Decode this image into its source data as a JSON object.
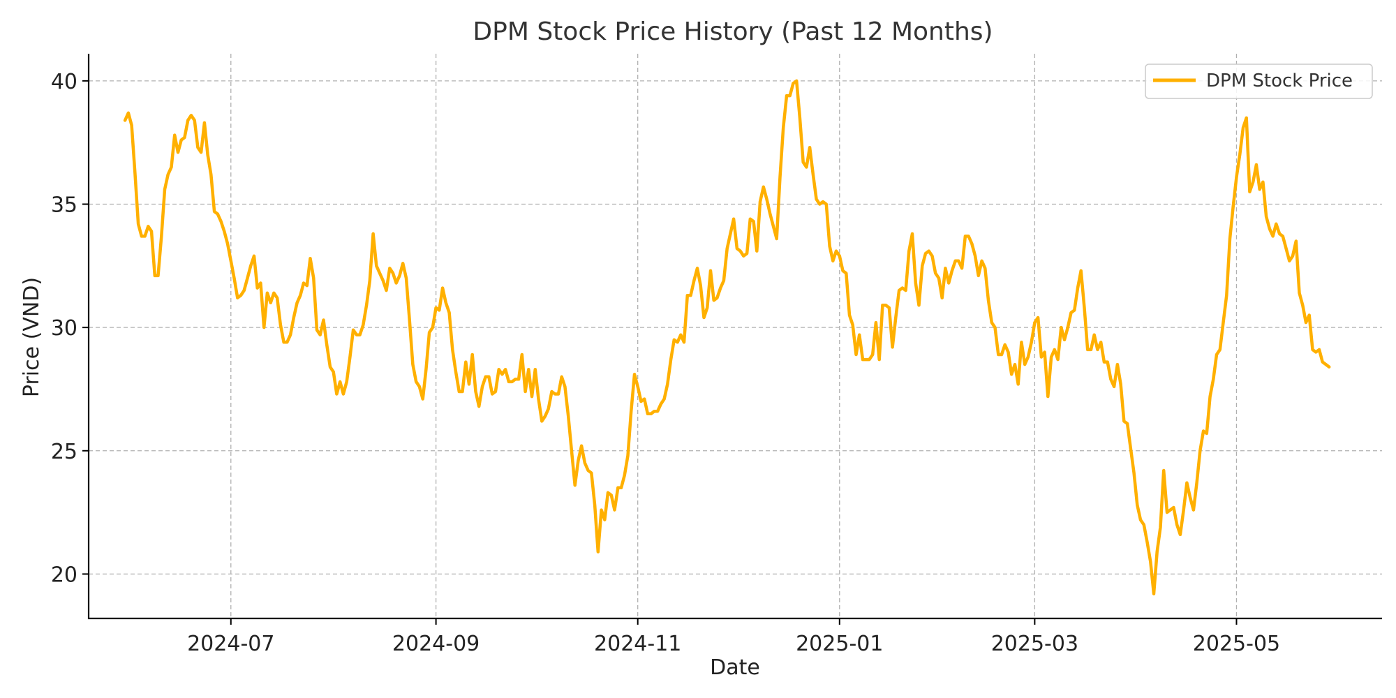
{
  "chart_data": {
    "type": "line",
    "title": "DPM Stock Price History (Past 12 Months)",
    "xlabel": "Date",
    "ylabel": "Price (VND)",
    "grid": true,
    "legend_position": "top-right",
    "ylim": [
      18.2,
      41.1
    ],
    "xlim": [
      "2024-05-19",
      "2025-06-14"
    ],
    "y_ticks": [
      20,
      25,
      30,
      35,
      40
    ],
    "x_ticks": [
      "2024-07",
      "2024-09",
      "2024-11",
      "2025-01",
      "2025-03",
      "2025-05"
    ],
    "x_tick_dates": [
      "2024-07-01",
      "2024-09-01",
      "2024-11-01",
      "2025-01-01",
      "2025-03-01",
      "2025-05-01"
    ],
    "series": [
      {
        "name": "DPM Stock Price",
        "color": "#FFB000",
        "start_date": "2024-05-30",
        "step_days": 1,
        "values": [
          38.4,
          38.7,
          38.2,
          36.3,
          34.2,
          33.7,
          33.7,
          34.1,
          33.9,
          32.1,
          32.1,
          33.7,
          35.6,
          36.2,
          36.5,
          37.8,
          37.1,
          37.6,
          37.7,
          38.4,
          38.6,
          38.4,
          37.3,
          37.1,
          38.3,
          37.0,
          36.2,
          34.7,
          34.6,
          34.3,
          33.9,
          33.4,
          32.7,
          32.0,
          31.2,
          31.3,
          31.5,
          32.0,
          32.5,
          32.9,
          31.6,
          31.8,
          30.0,
          31.4,
          31.0,
          31.4,
          31.2,
          30.1,
          29.4,
          29.4,
          29.7,
          30.4,
          31.0,
          31.3,
          31.8,
          31.7,
          32.8,
          32.0,
          29.9,
          29.7,
          30.3,
          29.3,
          28.4,
          28.2,
          27.3,
          27.8,
          27.3,
          27.8,
          28.8,
          29.9,
          29.7,
          29.7,
          30.1,
          30.9,
          31.9,
          33.8,
          32.5,
          32.2,
          31.9,
          31.5,
          32.4,
          32.2,
          31.8,
          32.1,
          32.6,
          32.0,
          30.3,
          28.5,
          27.8,
          27.6,
          27.1,
          28.3,
          29.8,
          30.0,
          30.8,
          30.7,
          31.6,
          31.0,
          30.6,
          29.1,
          28.2,
          27.4,
          27.4,
          28.6,
          27.7,
          28.9,
          27.4,
          26.8,
          27.6,
          28.0,
          28.0,
          27.3,
          27.4,
          28.3,
          28.1,
          28.3,
          27.8,
          27.8,
          27.9,
          27.9,
          28.9,
          27.4,
          28.3,
          27.2,
          28.3,
          27.1,
          26.2,
          26.4,
          26.7,
          27.4,
          27.3,
          27.3,
          28.0,
          27.6,
          26.4,
          25.0,
          23.6,
          24.6,
          25.2,
          24.5,
          24.2,
          24.1,
          22.8,
          20.9,
          22.6,
          22.2,
          23.3,
          23.2,
          22.6,
          23.5,
          23.5,
          24.0,
          24.8,
          26.6,
          28.1,
          27.6,
          27.0,
          27.1,
          26.5,
          26.5,
          26.6,
          26.6,
          26.9,
          27.1,
          27.7,
          28.7,
          29.5,
          29.4,
          29.7,
          29.4,
          31.3,
          31.3,
          31.9,
          32.4,
          31.7,
          30.4,
          30.8,
          32.3,
          31.1,
          31.2,
          31.6,
          31.9,
          33.2,
          33.8,
          34.4,
          33.2,
          33.1,
          32.9,
          33.0,
          34.4,
          34.3,
          33.1,
          35.1,
          35.7,
          35.2,
          34.6,
          34.1,
          33.6,
          36.1,
          38.1,
          39.4,
          39.4,
          39.9,
          40.0,
          38.5,
          36.7,
          36.5,
          37.3,
          36.2,
          35.2,
          35.0,
          35.1,
          35.0,
          33.3,
          32.7,
          33.1,
          32.9,
          32.3,
          32.2,
          30.5,
          30.1,
          28.9,
          29.7,
          28.7,
          28.7,
          28.7,
          28.9,
          30.2,
          28.7,
          30.9,
          30.9,
          30.8,
          29.2,
          30.4,
          31.5,
          31.6,
          31.5,
          33.1,
          33.8,
          31.8,
          30.9,
          32.5,
          33.0,
          33.1,
          32.9,
          32.2,
          32.0,
          31.2,
          32.4,
          31.8,
          32.3,
          32.7,
          32.7,
          32.4,
          33.7,
          33.7,
          33.4,
          32.9,
          32.1,
          32.7,
          32.4,
          31.1,
          30.2,
          30.0,
          28.9,
          28.9,
          29.3,
          29.0,
          28.1,
          28.5,
          27.7,
          29.4,
          28.5,
          28.8,
          29.4,
          30.2,
          30.4,
          28.8,
          29.0,
          27.2,
          28.8,
          29.1,
          28.7,
          30.0,
          29.5,
          30.0,
          30.6,
          30.7,
          31.6,
          32.3,
          30.8,
          29.1,
          29.1,
          29.7,
          29.1,
          29.4,
          28.6,
          28.6,
          27.9,
          27.6,
          28.5,
          27.7,
          26.2,
          26.1,
          25.1,
          24.1,
          22.8,
          22.2,
          22.0,
          21.3,
          20.5,
          19.2,
          20.9,
          21.9,
          24.2,
          22.5,
          22.6,
          22.7,
          22.0,
          21.6,
          22.6,
          23.7,
          23.1,
          22.6,
          23.7,
          25.0,
          25.8,
          25.7,
          27.2,
          27.9,
          28.9,
          29.1,
          30.2,
          31.3,
          33.6,
          34.9,
          36.1,
          37.0,
          38.1,
          38.5,
          35.5,
          35.9,
          36.6,
          35.6,
          35.9,
          34.5,
          34.0,
          33.7,
          34.2,
          33.8,
          33.7,
          33.2,
          32.7,
          32.9,
          33.5,
          31.4,
          30.9,
          30.2,
          30.5,
          29.1,
          29.0,
          29.1,
          28.6,
          28.5,
          28.4
        ]
      }
    ]
  }
}
